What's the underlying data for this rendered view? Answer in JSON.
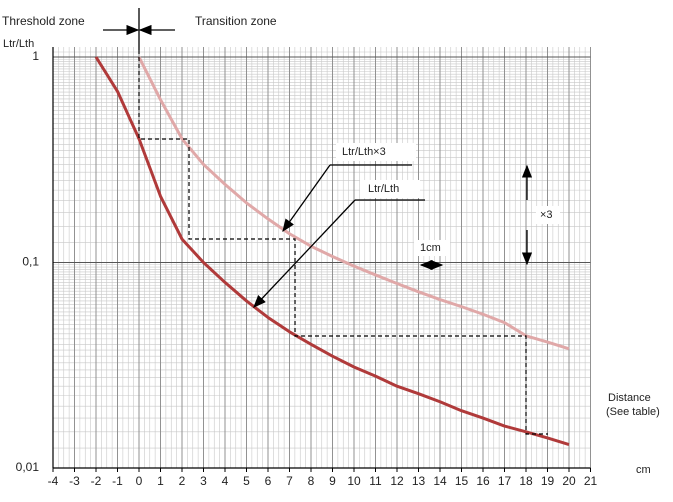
{
  "chart_data": {
    "type": "line",
    "annotations": {
      "threshold": "Threshold zone",
      "transition": "Transition zone",
      "times3": "×3",
      "cm_step": "1cm",
      "distance": "Distance",
      "see_table": "(See table)"
    },
    "y_label": "Ltr/Lth",
    "x_label": "cm",
    "log_y": true,
    "grid": true,
    "xlim": [
      -4,
      21
    ],
    "xticks": [
      -4,
      -3,
      -2,
      -1,
      0,
      1,
      2,
      3,
      4,
      5,
      6,
      7,
      8,
      9,
      10,
      11,
      12,
      13,
      14,
      15,
      16,
      17,
      18,
      19,
      20,
      21
    ],
    "ylim": [
      0.01,
      1
    ],
    "yticks": [
      {
        "value": 0.01,
        "label": "0,01"
      },
      {
        "value": 0.1,
        "label": "0,1"
      },
      1
    ],
    "series": [
      {
        "name": "Ltr/Lth",
        "color": "#b03a3a",
        "x": [
          -2,
          -1,
          0,
          1,
          2,
          3,
          4,
          5,
          6,
          7,
          8,
          9,
          10,
          11,
          12,
          13,
          14,
          15,
          16,
          17,
          18,
          19,
          20
        ],
        "values": [
          1,
          0.68,
          0.4,
          0.21,
          0.13,
          0.1,
          0.08,
          0.065,
          0.054,
          0.046,
          0.04,
          0.035,
          0.031,
          0.028,
          0.025,
          0.023,
          0.021,
          0.019,
          0.0175,
          0.016,
          0.015,
          0.014,
          0.013
        ]
      },
      {
        "name": "Ltr/Lth×3",
        "color": "#e0a8a8",
        "x": [
          0,
          1,
          2,
          3,
          4,
          5,
          6,
          7,
          8,
          9,
          10,
          11,
          12,
          13,
          14,
          15,
          16,
          17,
          18,
          19,
          20
        ],
        "values": [
          1,
          0.62,
          0.4,
          0.3,
          0.24,
          0.195,
          0.163,
          0.138,
          0.12,
          0.107,
          0.096,
          0.087,
          0.079,
          0.072,
          0.066,
          0.061,
          0.056,
          0.051,
          0.044,
          0.041,
          0.038
        ]
      }
    ]
  }
}
